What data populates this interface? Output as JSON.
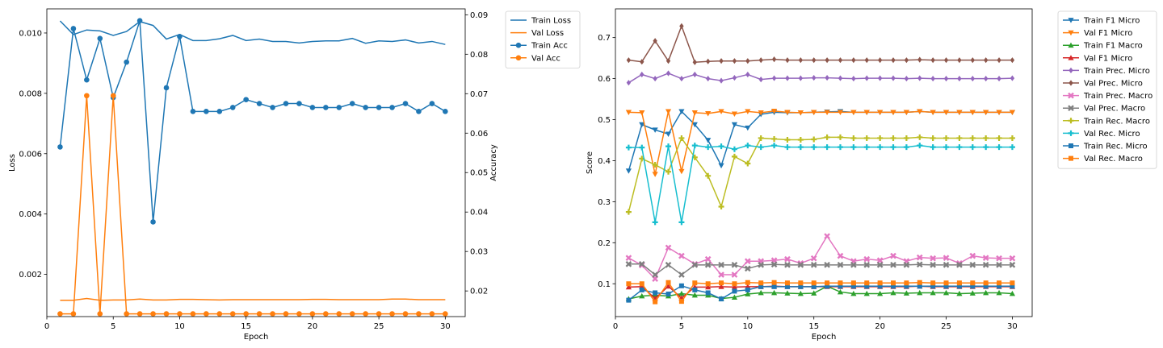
{
  "chart_data": [
    {
      "type": "line",
      "x": [
        1,
        2,
        3,
        4,
        5,
        6,
        7,
        8,
        9,
        10,
        11,
        12,
        13,
        14,
        15,
        16,
        17,
        18,
        19,
        20,
        21,
        22,
        23,
        24,
        25,
        26,
        27,
        28,
        29,
        30
      ],
      "xlabel": "Epoch",
      "ylabel": "Loss",
      "ylabel_right": "Accuracy",
      "xlim": [
        0,
        31.5
      ],
      "ylim": [
        0.0006,
        0.0108
      ],
      "ylim_right": [
        0.0135,
        0.0915
      ],
      "xticks": [
        0,
        5,
        10,
        15,
        20,
        25,
        30
      ],
      "yticks": [
        0.002,
        0.004,
        0.006,
        0.008,
        0.01
      ],
      "ytick_labels": [
        "0.002",
        "0.004",
        "0.006",
        "0.008",
        "0.010"
      ],
      "yticks_right": [
        0.02,
        0.03,
        0.04,
        0.05,
        0.06,
        0.07,
        0.08,
        0.09
      ],
      "ytick_labels_right": [
        "0.02",
        "0.03",
        "0.04",
        "0.05",
        "0.06",
        "0.07",
        "0.08",
        "0.09"
      ],
      "legend": "outside-upper-right",
      "series": [
        {
          "name": "Train Loss",
          "axis": "left",
          "color": "#1f77b4",
          "marker": "none",
          "values": [
            0.0104,
            0.00995,
            0.0101,
            0.01007,
            0.00992,
            0.01005,
            0.01038,
            0.01025,
            0.0098,
            0.00995,
            0.00975,
            0.00975,
            0.00981,
            0.00992,
            0.00975,
            0.0098,
            0.00972,
            0.00972,
            0.00967,
            0.00972,
            0.00974,
            0.00974,
            0.00982,
            0.00966,
            0.00974,
            0.00972,
            0.00977,
            0.00967,
            0.00972,
            0.00962
          ]
        },
        {
          "name": "Val Loss",
          "axis": "left",
          "color": "#ff7f0e",
          "marker": "none",
          "values": [
            0.00114,
            0.00114,
            0.0012,
            0.00114,
            0.00115,
            0.00115,
            0.00118,
            0.00115,
            0.00115,
            0.00117,
            0.00117,
            0.00116,
            0.00115,
            0.00116,
            0.00116,
            0.00116,
            0.00116,
            0.00116,
            0.00116,
            0.00117,
            0.00117,
            0.00116,
            0.00116,
            0.00116,
            0.00116,
            0.00118,
            0.00118,
            0.00116,
            0.00116,
            0.00116
          ]
        },
        {
          "name": "Train Acc",
          "axis": "right",
          "color": "#1f77b4",
          "marker": "circle",
          "values": [
            0.0565,
            0.0865,
            0.0735,
            0.084,
            0.069,
            0.078,
            0.0885,
            0.0375,
            0.0715,
            0.0845,
            0.0655,
            0.0655,
            0.0655,
            0.0665,
            0.0685,
            0.0675,
            0.0665,
            0.0675,
            0.0675,
            0.0665,
            0.0665,
            0.0665,
            0.0675,
            0.0665,
            0.0665,
            0.0665,
            0.0675,
            0.0655,
            0.0675,
            0.0655
          ]
        },
        {
          "name": "Val Acc",
          "axis": "right",
          "color": "#ff7f0e",
          "marker": "circle",
          "values": [
            0.0142,
            0.0142,
            0.0695,
            0.0142,
            0.0695,
            0.0142,
            0.0142,
            0.0142,
            0.0142,
            0.0142,
            0.0142,
            0.0142,
            0.0142,
            0.0142,
            0.0142,
            0.0142,
            0.0142,
            0.0142,
            0.0142,
            0.0142,
            0.0142,
            0.0142,
            0.0142,
            0.0142,
            0.0142,
            0.0142,
            0.0142,
            0.0142,
            0.0142,
            0.0142
          ]
        }
      ]
    },
    {
      "type": "line",
      "x": [
        1,
        2,
        3,
        4,
        5,
        6,
        7,
        8,
        9,
        10,
        11,
        12,
        13,
        14,
        15,
        16,
        17,
        18,
        19,
        20,
        21,
        22,
        23,
        24,
        25,
        26,
        27,
        28,
        29,
        30
      ],
      "xlabel": "Epoch",
      "ylabel": "Score",
      "xlim": [
        0,
        31.5
      ],
      "ylim": [
        0.02,
        0.77
      ],
      "xticks": [
        0,
        5,
        10,
        15,
        20,
        25,
        30
      ],
      "yticks": [
        0.1,
        0.2,
        0.3,
        0.4,
        0.5,
        0.6,
        0.7
      ],
      "ytick_labels": [
        "0.1",
        "0.2",
        "0.3",
        "0.4",
        "0.5",
        "0.6",
        "0.7"
      ],
      "legend": "outside-upper-right",
      "series": [
        {
          "name": "Train F1 Micro",
          "color": "#1f77b4",
          "marker": "triangle-down",
          "values": [
            0.375,
            0.488,
            0.475,
            0.465,
            0.52,
            0.488,
            0.45,
            0.388,
            0.488,
            0.48,
            0.513,
            0.518,
            0.517,
            0.517,
            0.518,
            0.519,
            0.52,
            0.518,
            0.518,
            0.518,
            0.518,
            0.518,
            0.52,
            0.518,
            0.518,
            0.518,
            0.518,
            0.518,
            0.518,
            0.518
          ]
        },
        {
          "name": "Val F1 Micro",
          "color": "#ff7f0e",
          "marker": "triangle-down",
          "values": [
            0.518,
            0.517,
            0.367,
            0.52,
            0.374,
            0.517,
            0.515,
            0.52,
            0.514,
            0.52,
            0.517,
            0.521,
            0.518,
            0.517,
            0.518,
            0.518,
            0.518,
            0.518,
            0.518,
            0.518,
            0.518,
            0.518,
            0.52,
            0.518,
            0.518,
            0.518,
            0.518,
            0.518,
            0.518,
            0.518
          ]
        },
        {
          "name": "Train F1 Macro",
          "color": "#2ca02c",
          "marker": "triangle-up",
          "values": [
            0.063,
            0.07,
            0.072,
            0.07,
            0.076,
            0.072,
            0.072,
            0.064,
            0.067,
            0.075,
            0.078,
            0.078,
            0.077,
            0.076,
            0.077,
            0.094,
            0.08,
            0.076,
            0.076,
            0.076,
            0.078,
            0.077,
            0.078,
            0.078,
            0.078,
            0.076,
            0.077,
            0.078,
            0.078,
            0.076
          ]
        },
        {
          "name": "Val F1 Micro",
          "color": "#d62728",
          "marker": "triangle-up",
          "values": [
            0.092,
            0.093,
            0.064,
            0.094,
            0.065,
            0.092,
            0.092,
            0.093,
            0.092,
            0.093,
            0.093,
            0.094,
            0.093,
            0.093,
            0.093,
            0.093,
            0.093,
            0.093,
            0.093,
            0.093,
            0.093,
            0.093,
            0.094,
            0.093,
            0.093,
            0.093,
            0.093,
            0.093,
            0.093,
            0.093
          ]
        },
        {
          "name": "Train Prec. Micro",
          "color": "#9467bd",
          "marker": "diamond",
          "values": [
            0.59,
            0.61,
            0.6,
            0.613,
            0.6,
            0.61,
            0.6,
            0.595,
            0.602,
            0.61,
            0.598,
            0.601,
            0.601,
            0.601,
            0.602,
            0.602,
            0.601,
            0.6,
            0.601,
            0.601,
            0.601,
            0.6,
            0.601,
            0.6,
            0.6,
            0.6,
            0.6,
            0.6,
            0.6,
            0.601
          ]
        },
        {
          "name": "Val Prec. Micro",
          "color": "#8c564b",
          "marker": "diamond",
          "values": [
            0.645,
            0.641,
            0.692,
            0.643,
            0.728,
            0.64,
            0.642,
            0.643,
            0.643,
            0.643,
            0.645,
            0.647,
            0.645,
            0.645,
            0.645,
            0.645,
            0.645,
            0.645,
            0.645,
            0.645,
            0.645,
            0.645,
            0.646,
            0.645,
            0.645,
            0.645,
            0.645,
            0.645,
            0.645,
            0.645
          ]
        },
        {
          "name": "Train Prec. Macro",
          "color": "#e377c2",
          "marker": "x",
          "values": [
            0.163,
            0.145,
            0.112,
            0.188,
            0.168,
            0.148,
            0.16,
            0.122,
            0.122,
            0.155,
            0.155,
            0.157,
            0.16,
            0.15,
            0.162,
            0.216,
            0.168,
            0.155,
            0.16,
            0.157,
            0.168,
            0.155,
            0.164,
            0.162,
            0.163,
            0.15,
            0.168,
            0.163,
            0.162,
            0.162
          ]
        },
        {
          "name": "Val Prec. Macro",
          "color": "#7f7f7f",
          "marker": "x",
          "values": [
            0.148,
            0.148,
            0.122,
            0.146,
            0.122,
            0.146,
            0.146,
            0.146,
            0.146,
            0.137,
            0.146,
            0.147,
            0.146,
            0.146,
            0.146,
            0.146,
            0.146,
            0.146,
            0.146,
            0.146,
            0.146,
            0.146,
            0.147,
            0.146,
            0.146,
            0.146,
            0.146,
            0.146,
            0.146,
            0.146
          ]
        },
        {
          "name": "Train Rec. Macro",
          "color": "#bcbd22",
          "marker": "plus",
          "values": [
            0.275,
            0.405,
            0.39,
            0.373,
            0.455,
            0.408,
            0.363,
            0.288,
            0.41,
            0.393,
            0.455,
            0.453,
            0.451,
            0.451,
            0.452,
            0.457,
            0.457,
            0.455,
            0.455,
            0.455,
            0.455,
            0.455,
            0.457,
            0.455,
            0.455,
            0.455,
            0.455,
            0.455,
            0.455,
            0.455
          ]
        },
        {
          "name": "Val Rec. Micro",
          "color": "#17becf",
          "marker": "plus",
          "values": [
            0.432,
            0.432,
            0.25,
            0.435,
            0.25,
            0.437,
            0.433,
            0.435,
            0.428,
            0.437,
            0.433,
            0.437,
            0.433,
            0.433,
            0.433,
            0.433,
            0.433,
            0.433,
            0.433,
            0.433,
            0.433,
            0.433,
            0.437,
            0.433,
            0.433,
            0.433,
            0.433,
            0.433,
            0.433,
            0.433
          ]
        },
        {
          "name": "Train Rec. Micro",
          "color": "#1f77b4",
          "marker": "square",
          "values": [
            0.06,
            0.085,
            0.078,
            0.075,
            0.095,
            0.085,
            0.078,
            0.063,
            0.082,
            0.085,
            0.093,
            0.093,
            0.093,
            0.093,
            0.093,
            0.094,
            0.094,
            0.094,
            0.094,
            0.094,
            0.094,
            0.094,
            0.094,
            0.094,
            0.094,
            0.094,
            0.094,
            0.094,
            0.094,
            0.094
          ]
        },
        {
          "name": "Val Rec. Macro",
          "color": "#ff7f0e",
          "marker": "square",
          "values": [
            0.1,
            0.1,
            0.056,
            0.103,
            0.057,
            0.102,
            0.1,
            0.102,
            0.1,
            0.103,
            0.102,
            0.103,
            0.102,
            0.102,
            0.102,
            0.102,
            0.102,
            0.102,
            0.102,
            0.102,
            0.102,
            0.102,
            0.103,
            0.102,
            0.102,
            0.102,
            0.102,
            0.102,
            0.102,
            0.102
          ]
        }
      ]
    }
  ]
}
